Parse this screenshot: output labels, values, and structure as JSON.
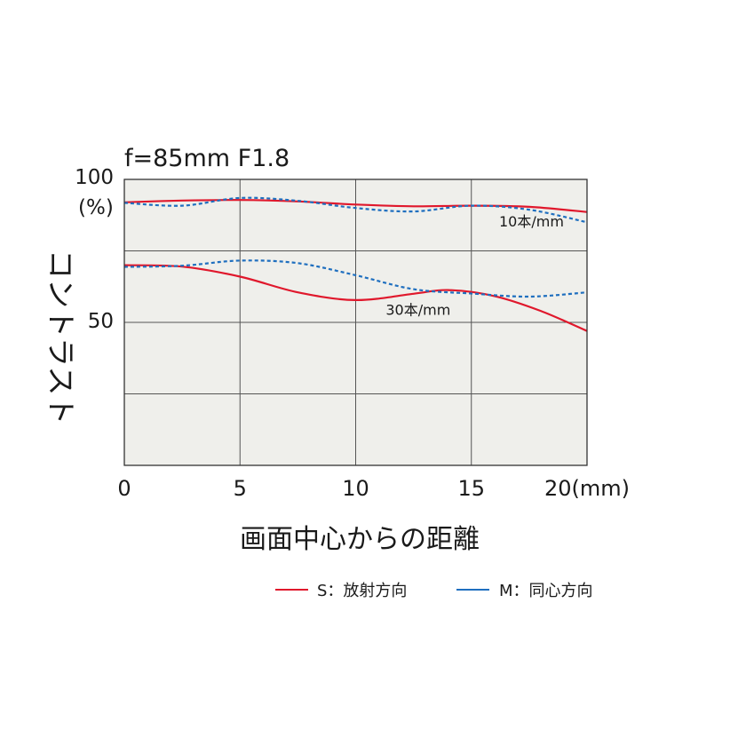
{
  "chart_data": {
    "type": "line",
    "title": "f=85mm F1.8",
    "ylabel": "コントラスト",
    "xlabel": "画面中心からの距離",
    "xlim": [
      0,
      20
    ],
    "ylim": [
      0,
      100
    ],
    "x_ticks": [
      {
        "value": 0,
        "label": "0"
      },
      {
        "value": 5,
        "label": "5"
      },
      {
        "value": 10,
        "label": "10"
      },
      {
        "value": 15,
        "label": "15"
      },
      {
        "value": 20,
        "label": "20(mm)"
      }
    ],
    "y_ticks": [
      {
        "value": 100,
        "label": "100"
      },
      {
        "value": 50,
        "label": "50"
      }
    ],
    "y_unit_label": "(%)",
    "y_gridlines": [
      25,
      50,
      75,
      100
    ],
    "grid": true,
    "background_color": "#efefeb",
    "series": [
      {
        "name": "S：放射方向",
        "group": "10本/mm",
        "color": "#e0182c",
        "dash": "solid",
        "x": [
          0,
          2.5,
          5,
          7.5,
          10,
          12.5,
          15,
          17.5,
          20
        ],
        "y": [
          92,
          92.6,
          92.8,
          92.3,
          91.2,
          90.6,
          90.8,
          90.4,
          88.6
        ]
      },
      {
        "name": "M：同心方向",
        "group": "10本/mm",
        "color": "#1f6fbf",
        "dash": "dashed",
        "x": [
          0,
          2.5,
          5,
          7.5,
          10,
          12.5,
          15,
          17.5,
          20
        ],
        "y": [
          91.8,
          90.8,
          93.5,
          92.5,
          90,
          88.8,
          90.8,
          89.4,
          85
        ]
      },
      {
        "name": "S：放射方向",
        "group": "30本/mm",
        "color": "#e0182c",
        "dash": "solid",
        "x": [
          0,
          2.5,
          5,
          7.5,
          10,
          12.5,
          14,
          16,
          18,
          20
        ],
        "y": [
          70,
          69.5,
          66,
          60.5,
          57.8,
          60,
          61.3,
          59.2,
          54,
          47
        ]
      },
      {
        "name": "M：同心方向",
        "group": "30本/mm",
        "color": "#1f6fbf",
        "dash": "dashed",
        "x": [
          0,
          2.5,
          5,
          7.5,
          10,
          12.5,
          15,
          17.5,
          20
        ],
        "y": [
          69.4,
          69.8,
          71.6,
          70.7,
          66.5,
          61.6,
          60.1,
          59,
          60.5
        ]
      }
    ],
    "annotations": [
      {
        "text": "10本/mm",
        "x": 16.2,
        "y": 83.5
      },
      {
        "text": "30本/mm",
        "x": 11.3,
        "y": 52.6
      }
    ],
    "legend": {
      "placement": "bottom",
      "items": [
        {
          "label": "S：放射方向",
          "color": "#e0182c"
        },
        {
          "label": "M：同心方向",
          "color": "#1f6fbf"
        }
      ]
    }
  }
}
